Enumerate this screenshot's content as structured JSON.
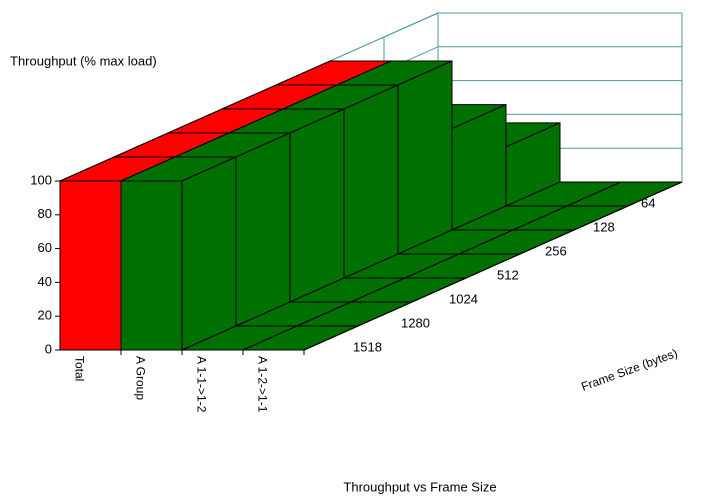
{
  "chart_data": {
    "type": "bar3d",
    "title": "Throughput vs Frame Size",
    "ylabel": "Throughput (% max load)",
    "zlabel": "Frame Size (bytes)",
    "categories": [
      "1518",
      "1280",
      "1024",
      "512",
      "256",
      "128",
      "64"
    ],
    "series": [
      {
        "name": "Total",
        "color": "#ff0000",
        "values": [
          100,
          100,
          100,
          100,
          100,
          60,
          35
        ]
      },
      {
        "name": "A Group",
        "color": "#007000",
        "values": [
          100,
          100,
          100,
          100,
          100,
          60,
          35
        ]
      },
      {
        "name": "A 1-1->1-2",
        "color": "#007000",
        "values": [
          0,
          0,
          0,
          0,
          0,
          0,
          0
        ]
      },
      {
        "name": "A 1-2->1-1",
        "color": "#007000",
        "values": [
          0,
          0,
          0,
          0,
          0,
          0,
          0
        ]
      }
    ],
    "ylim": [
      0,
      100
    ],
    "yticks": [
      0,
      20,
      40,
      60,
      80,
      100
    ],
    "grid": true
  }
}
